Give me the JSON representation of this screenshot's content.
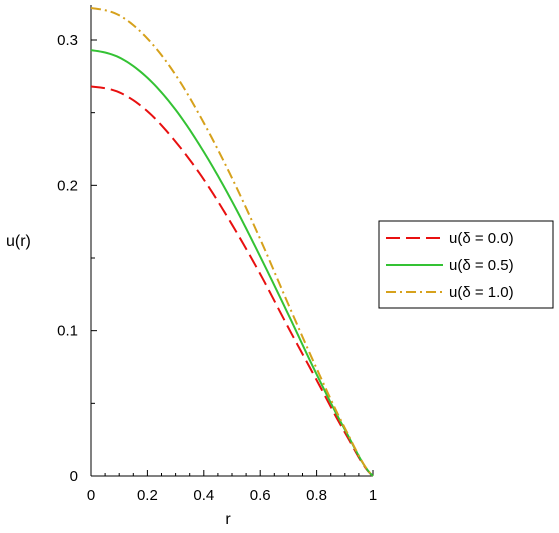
{
  "chart_data": {
    "type": "line",
    "title": "",
    "xlabel": "r",
    "ylabel": "u(r)",
    "xlim": [
      0,
      1
    ],
    "ylim": [
      0,
      0.32
    ],
    "xticks": [
      0,
      0.2,
      0.4,
      0.6,
      0.8,
      1
    ],
    "xtick_labels": [
      "0",
      "0.2",
      "0.4",
      "0.6",
      "0.8",
      "1"
    ],
    "yticks": [
      0,
      0.1,
      0.2,
      0.3
    ],
    "ytick_labels": [
      "0",
      "0.1",
      "0.2",
      "0.3"
    ],
    "grid": false,
    "legend_position": "right",
    "series": [
      {
        "name": "u(δ = 0.0)",
        "color": "#e81010",
        "dash": "dashed",
        "x": [
          0,
          0.1,
          0.2,
          0.3,
          0.4,
          0.5,
          0.6,
          0.7,
          0.8,
          0.9,
          1.0
        ],
        "y": [
          0.268,
          0.264,
          0.251,
          0.23,
          0.204,
          0.173,
          0.139,
          0.102,
          0.066,
          0.03,
          0.0
        ]
      },
      {
        "name": "u(δ = 0.5)",
        "color": "#34c234",
        "dash": "solid",
        "x": [
          0,
          0.1,
          0.2,
          0.3,
          0.4,
          0.5,
          0.6,
          0.7,
          0.8,
          0.9,
          1.0
        ],
        "y": [
          0.293,
          0.288,
          0.274,
          0.252,
          0.223,
          0.189,
          0.151,
          0.111,
          0.07,
          0.032,
          0.0
        ]
      },
      {
        "name": "u(δ = 1.0)",
        "color": "#d6a11c",
        "dash": "dashdot",
        "x": [
          0,
          0.1,
          0.2,
          0.3,
          0.4,
          0.5,
          0.6,
          0.7,
          0.8,
          0.9,
          1.0
        ],
        "y": [
          0.322,
          0.317,
          0.301,
          0.276,
          0.243,
          0.205,
          0.163,
          0.118,
          0.074,
          0.033,
          0.0
        ]
      }
    ]
  }
}
